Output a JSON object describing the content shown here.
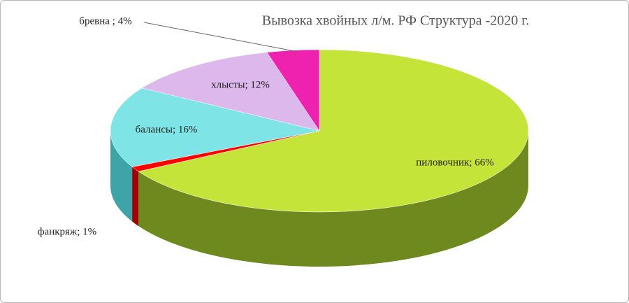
{
  "chart_data": {
    "type": "pie3d",
    "title": "Вывозка хвойных л/м. РФ Структура  -2020 г.",
    "values": [
      66,
      1,
      16,
      12,
      4
    ],
    "value_labels": [
      "пиловочник; 66%",
      "фанкряж; 1%",
      "балансы; 16%",
      "хлысты; 12%",
      "бревна ; 4%"
    ],
    "colors": [
      "#c4e43a",
      "#ff0000",
      "#7ee4e6",
      "#dcb8ec",
      "#ee22ae"
    ],
    "side_colors": [
      "#6e8a1e",
      "#a00000",
      "#3ea4a8",
      "#9a7aa8",
      "#a01878"
    ]
  }
}
